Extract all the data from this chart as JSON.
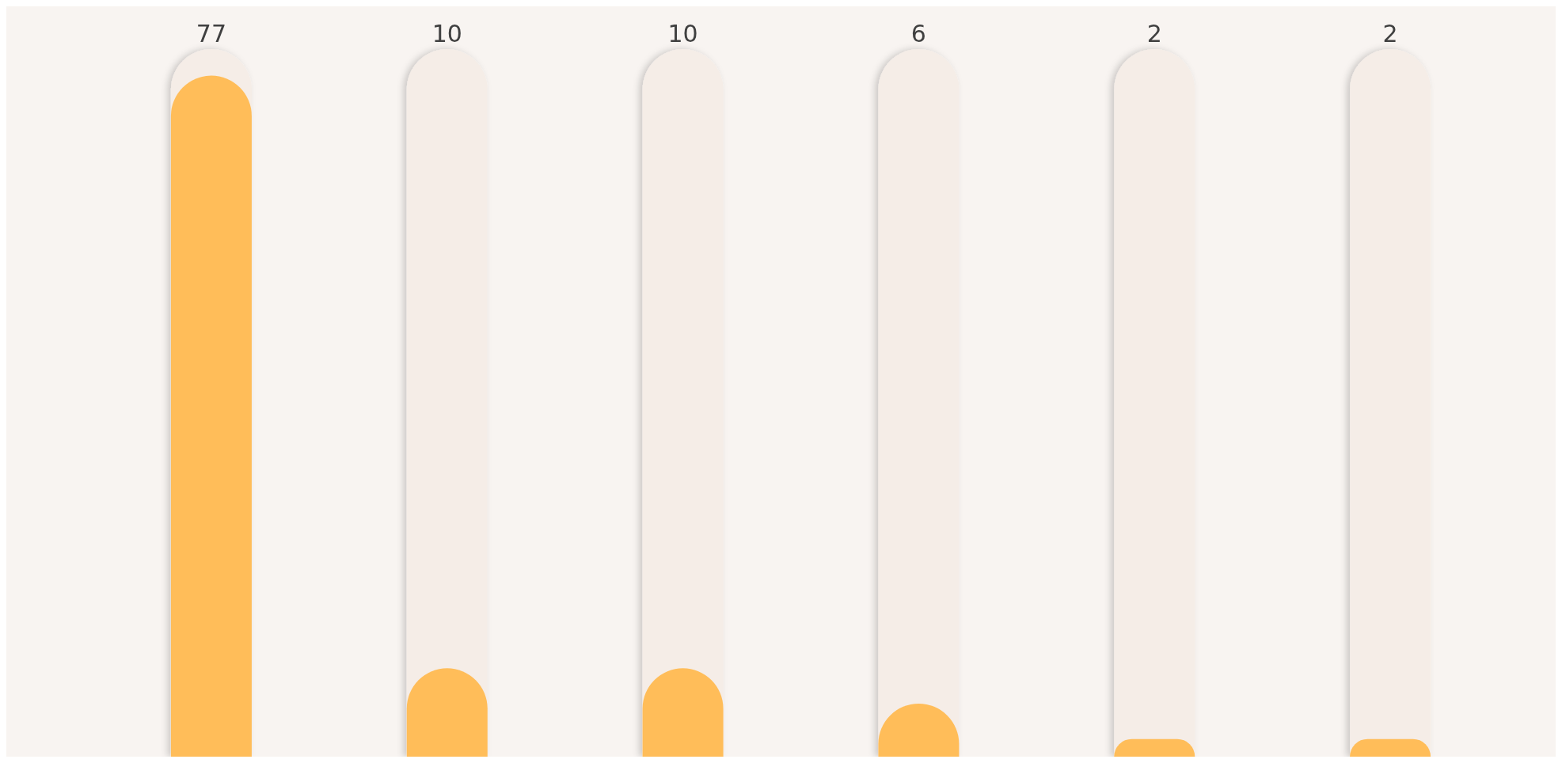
{
  "chart_data": {
    "type": "bar",
    "categories": [
      null,
      null,
      null,
      null,
      null,
      null
    ],
    "values": [
      77,
      10,
      10,
      6,
      2,
      2
    ],
    "color": "#ffbd59",
    "data_labels": true,
    "tick_labels": false
  }
}
